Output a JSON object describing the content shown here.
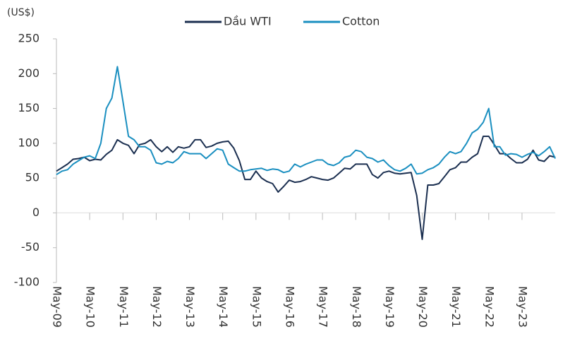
{
  "chart_data": {
    "type": "line",
    "unit_label": "(US$)",
    "categories": [
      "May-09",
      null,
      null,
      null,
      null,
      null,
      "May-10",
      null,
      null,
      null,
      null,
      null,
      "May-11",
      null,
      null,
      null,
      null,
      null,
      "May-12",
      null,
      null,
      null,
      null,
      null,
      "May-13",
      null,
      null,
      null,
      null,
      null,
      "May-14",
      null,
      null,
      null,
      null,
      null,
      "May-15",
      null,
      null,
      null,
      null,
      null,
      "May-16",
      null,
      null,
      null,
      null,
      null,
      "May-17",
      null,
      null,
      null,
      null,
      null,
      "May-18",
      null,
      null,
      null,
      null,
      null,
      "May-19",
      null,
      null,
      null,
      null,
      null,
      "May-20",
      null,
      null,
      null,
      null,
      null,
      "May-21",
      null,
      null,
      null,
      null,
      null,
      "May-22",
      null,
      null,
      null,
      null,
      null,
      "May-23",
      null,
      null,
      null,
      null,
      null,
      null
    ],
    "series": [
      {
        "name": "Dầu WTI",
        "color": "#1b2f50",
        "values": [
          60,
          65,
          70,
          77,
          78,
          80,
          75,
          77,
          76,
          84,
          90,
          105,
          100,
          97,
          85,
          98,
          100,
          105,
          95,
          88,
          95,
          87,
          95,
          93,
          95,
          105,
          105,
          94,
          96,
          100,
          102,
          103,
          93,
          75,
          48,
          48,
          60,
          50,
          45,
          42,
          30,
          38,
          47,
          44,
          45,
          48,
          52,
          50,
          48,
          47,
          50,
          57,
          64,
          63,
          70,
          70,
          70,
          55,
          50,
          58,
          60,
          57,
          56,
          57,
          58,
          25,
          -38,
          40,
          40,
          42,
          52,
          62,
          65,
          73,
          73,
          80,
          85,
          110,
          110,
          98,
          85,
          85,
          78,
          72,
          72,
          77,
          90,
          76,
          74,
          82,
          80
        ]
      },
      {
        "name": "Cotton",
        "color": "#1a8fc0",
        "values": [
          55,
          60,
          62,
          70,
          75,
          80,
          82,
          78,
          100,
          150,
          165,
          210,
          160,
          110,
          105,
          95,
          95,
          90,
          72,
          70,
          74,
          72,
          78,
          88,
          85,
          85,
          85,
          78,
          85,
          92,
          90,
          70,
          65,
          60,
          60,
          62,
          63,
          64,
          61,
          63,
          62,
          58,
          60,
          70,
          66,
          70,
          73,
          76,
          76,
          70,
          68,
          72,
          80,
          82,
          90,
          88,
          80,
          78,
          73,
          76,
          68,
          62,
          60,
          64,
          70,
          56,
          57,
          62,
          65,
          70,
          80,
          88,
          85,
          88,
          100,
          115,
          120,
          130,
          150,
          95,
          95,
          83,
          85,
          84,
          80,
          84,
          87,
          82,
          88,
          95,
          78
        ]
      }
    ],
    "ylim": [
      -100,
      250
    ],
    "yticks": [
      -100,
      -50,
      0,
      50,
      100,
      150,
      200,
      250
    ],
    "grid": false
  }
}
